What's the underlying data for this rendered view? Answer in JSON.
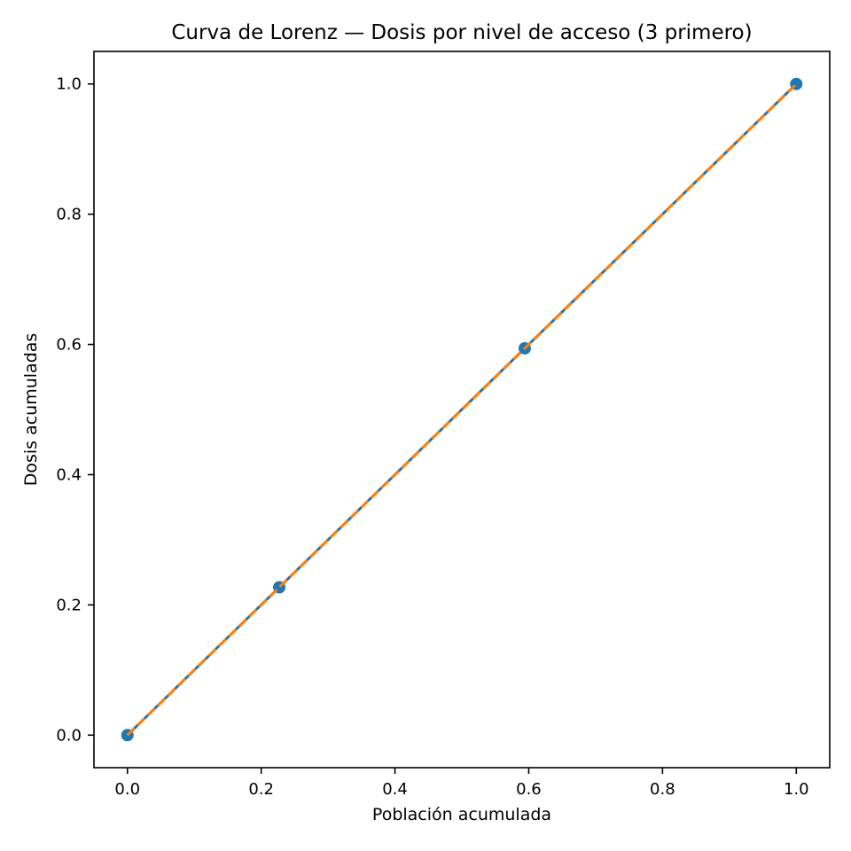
{
  "chart_data": {
    "type": "line",
    "title": "Curva de Lorenz — Dosis por nivel de acceso (3 primero)",
    "xlabel": "Población acumulada",
    "ylabel": "Dosis acumuladas",
    "xlim": [
      -0.05,
      1.05
    ],
    "ylim": [
      -0.05,
      1.05
    ],
    "xticks": [
      "0.0",
      "0.2",
      "0.4",
      "0.6",
      "0.8",
      "1.0"
    ],
    "yticks": [
      "0.0",
      "0.2",
      "0.4",
      "0.6",
      "0.8",
      "1.0"
    ],
    "grid": false,
    "series": [
      {
        "color": "#1f77b4",
        "style": "solid",
        "markers": true,
        "x": [
          0.0,
          0.227,
          0.594,
          1.0
        ],
        "y": [
          0.0,
          0.227,
          0.594,
          1.0
        ]
      },
      {
        "color": "#ff7f0e",
        "style": "dashed",
        "markers": false,
        "x": [
          0.0,
          1.0
        ],
        "y": [
          0.0,
          1.0
        ]
      }
    ]
  }
}
